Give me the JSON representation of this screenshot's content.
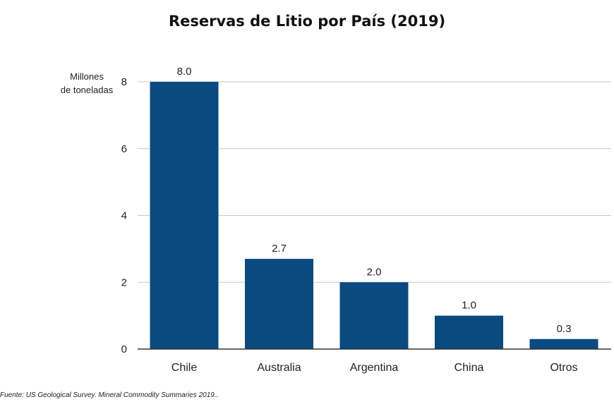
{
  "chart_data": {
    "type": "bar",
    "title": "Reservas de Litio por País (2019)",
    "ylabel_lines": [
      "Millones",
      "de toneladas"
    ],
    "xlabel": "",
    "categories": [
      "Chile",
      "Australia",
      "Argentina",
      "China",
      "Otros"
    ],
    "values": [
      8.0,
      2.7,
      2.0,
      1.0,
      0.3
    ],
    "data_labels": [
      "8.0",
      "2.7",
      "2.0",
      "1.0",
      "0.3"
    ],
    "yticks": [
      0,
      2,
      4,
      6,
      8
    ],
    "ylim": [
      0,
      8
    ],
    "grid": true,
    "bar_color": "#0a4a80",
    "grid_color": "#c8c8c8",
    "axis_color": "#333333",
    "legend": "none"
  },
  "source_note": "Fuente: US Geological Survey. Mineral Commodity Summaries 2019.."
}
